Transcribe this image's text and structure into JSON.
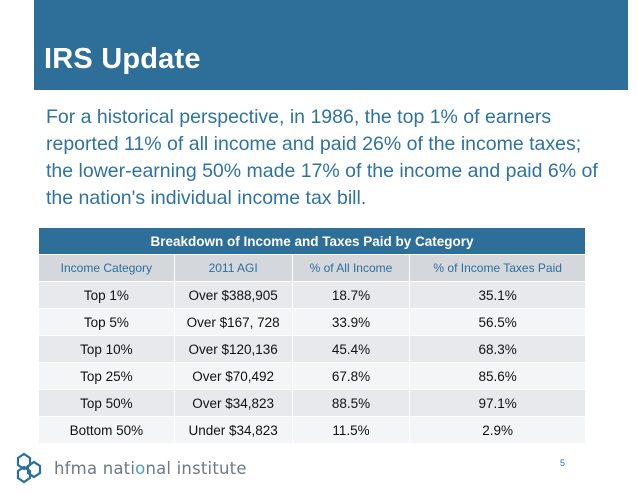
{
  "slide": {
    "title": "IRS Update",
    "intro": "For a historical perspective, in 1986, the top 1% of earners reported 11% of all income and paid 26% of the income taxes; the lower-earning 50% made 17% of the income and paid 6% of the nation's individual income tax bill.",
    "page_number": "5"
  },
  "table": {
    "title": "Breakdown of Income and Taxes Paid by Category",
    "headers": [
      "Income Category",
      "2011 AGI",
      "% of All Income",
      "% of Income Taxes Paid"
    ],
    "rows": [
      [
        "Top 1%",
        "Over $388,905",
        "18.7%",
        "35.1%"
      ],
      [
        "Top 5%",
        "Over $167, 728",
        "33.9%",
        "56.5%"
      ],
      [
        "Top 10%",
        "Over $120,136",
        "45.4%",
        "68.3%"
      ],
      [
        "Top 25%",
        "Over $70,492",
        "67.8%",
        "85.6%"
      ],
      [
        "Top 50%",
        "Over $34,823",
        "88.5%",
        "97.1%"
      ],
      [
        "Bottom 50%",
        "Under $34,823",
        "11.5%",
        "2.9%"
      ]
    ]
  },
  "footer": {
    "logo_text_part1": "hfm",
    "logo_text_part2": "a nati",
    "logo_text_part3": "o",
    "logo_text_part4": "nal institute",
    "logo_icon": "hexagon-lattice-logo"
  },
  "colors": {
    "brand_blue": "#2e6f9a",
    "text_blue": "#2e73a3",
    "header_gray": "#d4d7dc"
  }
}
